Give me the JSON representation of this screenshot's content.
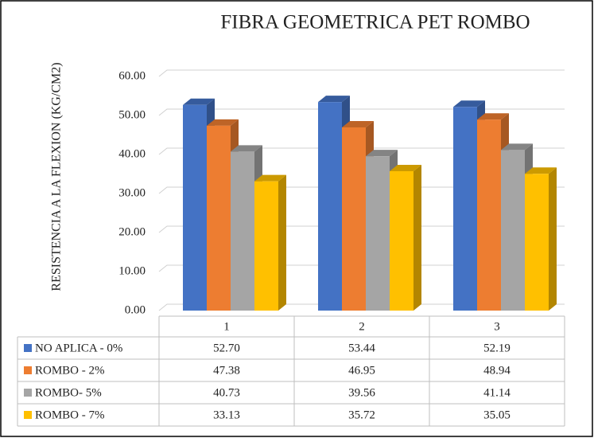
{
  "chart_data": {
    "type": "bar3d",
    "title": "FIBRA GEOMETRICA PET ROMBO",
    "y_label": "RESISTENCIA A LA FLEXION (KG/CM2)",
    "categories": [
      "1",
      "2",
      "3"
    ],
    "series": [
      {
        "name": "NO APLICA - 0%",
        "color": "#4472c4",
        "values": [
          52.7,
          53.44,
          52.19
        ],
        "value_labels": [
          "52.70",
          "53.44",
          "52.19"
        ]
      },
      {
        "name": "ROMBO - 2%",
        "color": "#ed7d31",
        "values": [
          47.38,
          46.95,
          48.94
        ],
        "value_labels": [
          "47.38",
          "46.95",
          "48.94"
        ]
      },
      {
        "name": "ROMBO- 5%",
        "color": "#a5a5a5",
        "values": [
          40.73,
          39.56,
          41.14
        ],
        "value_labels": [
          "40.73",
          "39.56",
          "41.14"
        ]
      },
      {
        "name": "ROMBO - 7%",
        "color": "#ffc000",
        "values": [
          33.13,
          35.72,
          35.05
        ],
        "value_labels": [
          "33.13",
          "35.72",
          "35.05"
        ]
      }
    ],
    "ylim": [
      0,
      60
    ],
    "yticks": [
      {
        "value": 0,
        "label": "0.00"
      },
      {
        "value": 10,
        "label": "10.00"
      },
      {
        "value": 20,
        "label": "20.00"
      },
      {
        "value": 30,
        "label": "30.00"
      },
      {
        "value": 40,
        "label": "40.00"
      },
      {
        "value": 50,
        "label": "50.00"
      },
      {
        "value": 60,
        "label": "60.00"
      }
    ],
    "grid": true
  }
}
